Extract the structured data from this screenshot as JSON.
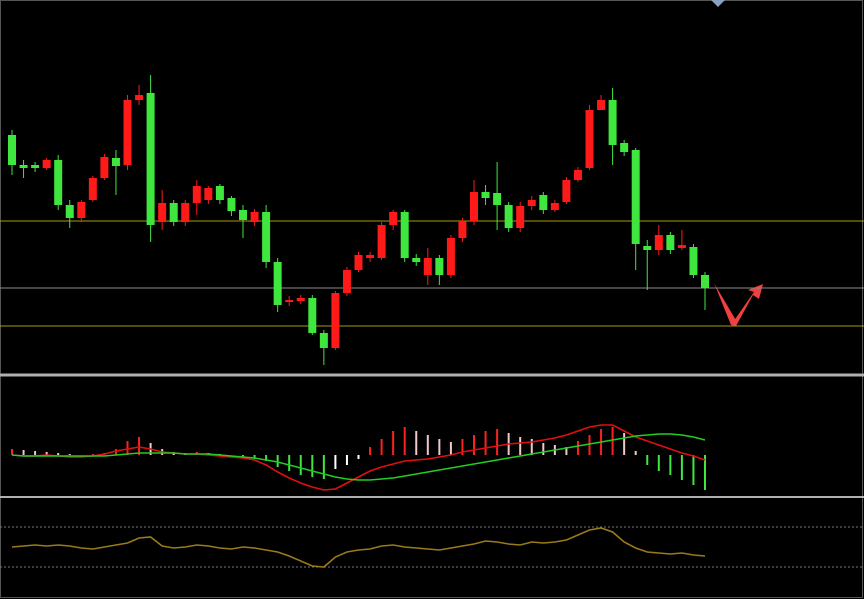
{
  "chart_data": [
    {
      "type": "candlestick",
      "open": [
        237,
        207,
        207,
        204,
        212,
        167,
        154,
        172,
        194,
        214,
        207,
        272,
        279,
        150,
        169,
        150,
        169,
        172,
        186,
        174,
        162,
        150,
        160,
        110,
        70,
        71,
        74,
        39,
        24,
        79,
        102,
        114,
        114,
        147,
        160,
        114,
        97,
        114,
        97,
        134,
        151,
        180,
        179,
        167,
        144,
        166,
        177,
        162,
        170,
        192,
        204,
        262,
        272,
        229,
        222,
        126,
        122,
        137,
        124,
        125,
        97
      ],
      "high": [
        242,
        212,
        210,
        214,
        217,
        172,
        172,
        196,
        218,
        222,
        277,
        287,
        297,
        182,
        172,
        172,
        192,
        186,
        188,
        176,
        167,
        163,
        167,
        114,
        76,
        77,
        77,
        42,
        81,
        105,
        120,
        120,
        150,
        162,
        162,
        118,
        124,
        117,
        137,
        154,
        192,
        187,
        210,
        170,
        170,
        176,
        180,
        172,
        195,
        205,
        267,
        277,
        284,
        232,
        224,
        132,
        147,
        140,
        142,
        128,
        100
      ],
      "low": [
        197,
        194,
        200,
        202,
        162,
        144,
        150,
        170,
        192,
        177,
        202,
        267,
        130,
        142,
        146,
        146,
        157,
        168,
        168,
        156,
        134,
        146,
        104,
        60,
        66,
        68,
        37,
        7,
        22,
        76,
        100,
        110,
        112,
        142,
        110,
        106,
        87,
        87,
        94,
        130,
        147,
        167,
        142,
        140,
        140,
        162,
        158,
        160,
        168,
        190,
        202,
        262,
        207,
        216,
        102,
        82,
        117,
        118,
        122,
        94,
        62
      ],
      "close": [
        207,
        204,
        204,
        212,
        167,
        154,
        170,
        194,
        215,
        206,
        272,
        277,
        147,
        169,
        150,
        169,
        186,
        184,
        172,
        161,
        152,
        160,
        110,
        67,
        72,
        74,
        39,
        24,
        79,
        102,
        117,
        117,
        147,
        160,
        114,
        110,
        114,
        97,
        134,
        151,
        180,
        174,
        167,
        144,
        166,
        172,
        162,
        169,
        192,
        202,
        262,
        272,
        227,
        220,
        128,
        122,
        137,
        122,
        127,
        97,
        84
      ],
      "ylim": [
        0,
        370
      ],
      "colors": {
        "up": "#ff1a1a",
        "down": "#3ee63e"
      },
      "levels": [
        {
          "value": 151,
          "color": "#a89a10"
        },
        {
          "value": 84,
          "color": "#8a8a8a"
        },
        {
          "value": 46,
          "color": "#a89a10"
        }
      ]
    },
    {
      "type": "macd",
      "histogram": [
        6,
        5,
        4,
        3,
        2,
        1,
        0,
        1,
        2,
        6,
        14,
        18,
        12,
        6,
        3,
        2,
        3,
        2,
        1,
        0,
        -2,
        -4,
        -6,
        -12,
        -16,
        -20,
        -22,
        -24,
        -14,
        -10,
        -4,
        8,
        16,
        24,
        28,
        24,
        20,
        16,
        13,
        16,
        20,
        24,
        26,
        22,
        18,
        16,
        12,
        10,
        8,
        14,
        20,
        26,
        28,
        22,
        4,
        -10,
        -16,
        -20,
        -25,
        -30,
        -35
      ],
      "series": [
        {
          "color": "#e01010",
          "values": [
            0,
            -1,
            -1,
            0,
            -1,
            -2,
            -2,
            -1,
            1,
            4,
            6,
            8,
            6,
            3,
            2,
            1,
            1,
            0,
            -1,
            -2,
            -3,
            -5,
            -10,
            -17,
            -23,
            -28,
            -32,
            -35,
            -34,
            -28,
            -22,
            -16,
            -12,
            -9,
            -6,
            -5,
            -4,
            -2,
            0,
            3,
            5,
            7,
            9,
            11,
            12,
            13,
            15,
            17,
            20,
            24,
            28,
            30,
            30,
            24,
            18,
            14,
            10,
            6,
            2,
            -1,
            -5
          ]
        },
        {
          "color": "#22cc22",
          "values": [
            0,
            -1,
            -1,
            -1,
            -1,
            -1,
            -1,
            -1,
            -1,
            0,
            1,
            2,
            2,
            2,
            2,
            1,
            1,
            1,
            0,
            -1,
            -2,
            -3,
            -5,
            -7,
            -10,
            -13,
            -16,
            -19,
            -22,
            -24,
            -25,
            -25,
            -24,
            -23,
            -21,
            -19,
            -17,
            -15,
            -13,
            -11,
            -9,
            -7,
            -5,
            -3,
            -1,
            1,
            3,
            5,
            7,
            9,
            11,
            13,
            15,
            17,
            19,
            20,
            21,
            21,
            20,
            18,
            15
          ]
        }
      ],
      "ylim": [
        -40,
        77
      ],
      "colors": {
        "up_rising": "#ff2020",
        "up_falling": "#f0c8c8",
        "down_falling": "#3ee63e",
        "down_rising": "#ffffff"
      }
    },
    {
      "type": "line",
      "series": [
        {
          "color": "#9a7a1a",
          "values": [
            43,
            44,
            45,
            44,
            45,
            44,
            42,
            41,
            43,
            45,
            47,
            52,
            53,
            44,
            42,
            43,
            45,
            44,
            42,
            41,
            43,
            42,
            40,
            38,
            34,
            29,
            24,
            23,
            33,
            38,
            40,
            41,
            44,
            45,
            43,
            42,
            41,
            40,
            42,
            44,
            46,
            49,
            48,
            46,
            45,
            48,
            47,
            48,
            50,
            55,
            60,
            62,
            58,
            48,
            42,
            38,
            37,
            36,
            37,
            35,
            34
          ]
        }
      ],
      "ylim": [
        0,
        90
      ],
      "levels": [
        {
          "value": 63,
          "color": "#777777"
        },
        {
          "value": 23,
          "color": "#777777"
        }
      ]
    }
  ]
}
